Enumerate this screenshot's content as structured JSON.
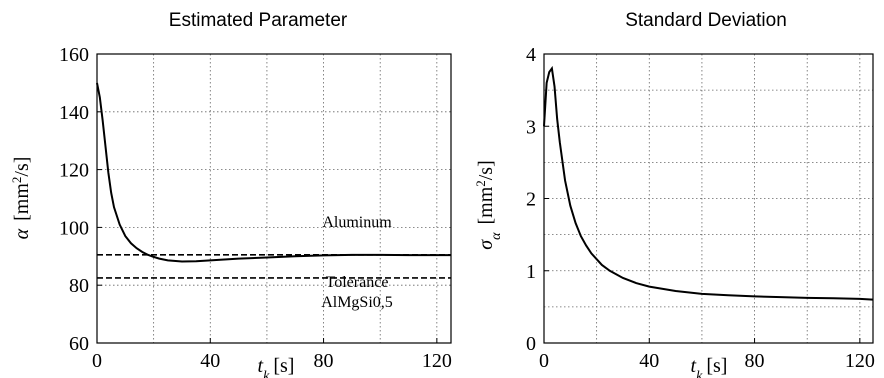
{
  "chart_data": [
    {
      "type": "line",
      "title": "Estimated Parameter",
      "xlabel": "t_k [s]",
      "ylabel": "α [mm²/s]",
      "xlim": [
        0,
        125
      ],
      "ylim": [
        60,
        160
      ],
      "xticks": [
        0,
        40,
        80,
        120
      ],
      "yticks": [
        60,
        80,
        100,
        120,
        140,
        160
      ],
      "grid": true,
      "series": [
        {
          "x": [
            0,
            1,
            2,
            3,
            4,
            5,
            6,
            8,
            10,
            12,
            14,
            16,
            18,
            20,
            22,
            25,
            30,
            35,
            40,
            50,
            60,
            70,
            80,
            90,
            100,
            110,
            120,
            125
          ],
          "y": [
            150,
            145,
            137,
            128,
            119,
            112,
            107,
            101,
            97,
            94.5,
            92.8,
            91.5,
            90.5,
            89.8,
            89.2,
            88.6,
            88.2,
            88.3,
            88.6,
            89.2,
            89.6,
            90.0,
            90.3,
            90.5,
            90.5,
            90.4,
            90.4,
            90.4
          ]
        }
      ],
      "reference_lines": [
        {
          "label": "Aluminum",
          "y": 90.5,
          "style": "dashed"
        },
        {
          "label": "Tolerance",
          "label2": "AlMgSi0,5",
          "y": 82.5,
          "style": "dashed"
        }
      ]
    },
    {
      "type": "line",
      "title": "Standard Deviation",
      "xlabel": "t_k [s]",
      "ylabel": "σ_α [mm²/s]",
      "xlim": [
        0,
        125
      ],
      "ylim": [
        0,
        4
      ],
      "xticks": [
        0,
        40,
        80,
        120
      ],
      "yticks": [
        0,
        1,
        2,
        3,
        4
      ],
      "grid": true,
      "series": [
        {
          "x": [
            0,
            1,
            2,
            3,
            4,
            5,
            6,
            8,
            10,
            12,
            14,
            16,
            18,
            20,
            22,
            25,
            30,
            35,
            40,
            50,
            60,
            70,
            80,
            90,
            100,
            110,
            120,
            125
          ],
          "y": [
            3.0,
            3.6,
            3.75,
            3.8,
            3.55,
            3.1,
            2.78,
            2.25,
            1.9,
            1.66,
            1.48,
            1.35,
            1.24,
            1.16,
            1.08,
            1.0,
            0.9,
            0.83,
            0.78,
            0.72,
            0.68,
            0.66,
            0.645,
            0.635,
            0.625,
            0.62,
            0.61,
            0.6
          ]
        }
      ]
    }
  ]
}
